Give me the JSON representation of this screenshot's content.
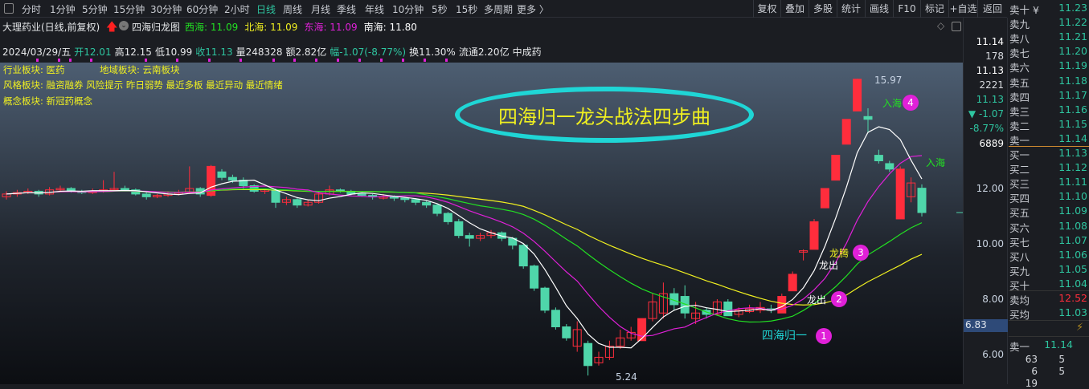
{
  "toolbar": {
    "tabs": [
      "分时",
      "1分钟",
      "5分钟",
      "15分钟",
      "30分钟",
      "60分钟",
      "2小时",
      "日线",
      "周线",
      "月线",
      "季线",
      "年线",
      "10分钟",
      "5秒",
      "15秒",
      "多周期",
      "更多 〉"
    ],
    "active": "日线",
    "buttons": [
      "复权",
      "叠加",
      "多股",
      "统计",
      "画线",
      "F10",
      "标记",
      "+自选",
      "返回"
    ]
  },
  "header": {
    "stock": "大理药业(日线,前复权)",
    "indicator": "四海归龙图",
    "legend": [
      {
        "label": "西海: 11.09",
        "color": "#22e022"
      },
      {
        "label": "北海: 11.09",
        "color": "#f0f020"
      },
      {
        "label": "东海: 11.09",
        "color": "#e020d8"
      },
      {
        "label": "南海: 11.80",
        "color": "#ffffff"
      }
    ],
    "quote": {
      "date": "2024/03/29/五",
      "open": "开12.01",
      "high": "高12.15",
      "low": "低10.99",
      "close": "收11.13",
      "volume": "量248328",
      "amount": "额2.82亿",
      "change": "幅-1.07(-8.77%)",
      "turnover": "换11.30%",
      "float": "流通2.20亿",
      "industry": "中成药"
    }
  },
  "sectors": {
    "industry": "行业板块: 医药",
    "region": "地域板块: 云南板块",
    "style": "风格板块: 融资融券 风险提示 昨日弱势 最近多板 最近异动 最近情绪",
    "concept": "概念板块: 新冠药概念"
  },
  "annotations": {
    "title": "四海归一龙头战法四步曲",
    "step1": "四海归一",
    "step2": "龙出",
    "step3a": "龙出",
    "step3b": "龙腾",
    "step4": "入海",
    "step5": "入海",
    "high": "15.97",
    "low": "5.24",
    "markers": [
      "1",
      "2",
      "3",
      "4"
    ]
  },
  "colors": {
    "up": "#ff2d3c",
    "down": "#4fd6aa",
    "ma5": "#ffffff",
    "ma10": "#e020d8",
    "ma20": "#22e022",
    "ma30": "#f0f020",
    "ellipse": "#1fd6d6"
  },
  "axis": {
    "top": [
      {
        "v": "11.14",
        "c": "#ffffff"
      },
      {
        "v": "178",
        "c": "#d8dbe0"
      },
      {
        "v": "11.13",
        "c": "#ffffff"
      },
      {
        "v": "2221",
        "c": "#d8dbe0"
      },
      {
        "v": "11.13",
        "c": "#2ec5a0"
      },
      {
        "v": "▼ -1.07",
        "c": "#2ec5a0"
      },
      {
        "v": "-8.77%",
        "c": "#2ec5a0"
      },
      {
        "v": "6889",
        "c": "#ffffff"
      }
    ],
    "ticks": [
      "12.00",
      "10.00",
      "8.00",
      "6.00"
    ],
    "cursor": "6.83"
  },
  "book": {
    "asks": [
      [
        "卖十 ¥",
        "11.23"
      ],
      [
        "卖九",
        "11.22"
      ],
      [
        "卖八",
        "11.21"
      ],
      [
        "卖七",
        "11.20"
      ],
      [
        "卖六",
        "11.19"
      ],
      [
        "卖五",
        "11.18"
      ],
      [
        "卖四",
        "11.17"
      ],
      [
        "卖三",
        "11.16"
      ],
      [
        "卖二",
        "11.15"
      ],
      [
        "卖一",
        "11.14"
      ]
    ],
    "bids": [
      [
        "买一",
        "11.13"
      ],
      [
        "买二",
        "11.12"
      ],
      [
        "买三",
        "11.11"
      ],
      [
        "买四",
        "11.10"
      ],
      [
        "买五",
        "11.09"
      ],
      [
        "买六",
        "11.08"
      ],
      [
        "买七",
        "11.07"
      ],
      [
        "买八",
        "11.06"
      ],
      [
        "买九",
        "11.05"
      ],
      [
        "买十",
        "11.04"
      ]
    ],
    "avg_ask": [
      "卖均",
      "12.52"
    ],
    "avg_bid": [
      "买均",
      "11.03"
    ],
    "last": [
      "卖一",
      "11.14"
    ],
    "ticks": [
      [
        "63",
        "5"
      ],
      [
        "6",
        "5"
      ],
      [
        "19",
        ""
      ]
    ]
  },
  "chart_data": {
    "type": "candlestick",
    "ylim": [
      5,
      16.4
    ],
    "ticks": [
      6,
      8,
      10,
      12
    ],
    "ohlc": [
      [
        11.7,
        11.9,
        11.6,
        11.8
      ],
      [
        11.8,
        11.95,
        11.7,
        11.85
      ],
      [
        11.85,
        12.0,
        11.8,
        11.9
      ],
      [
        11.9,
        11.95,
        11.7,
        11.8
      ],
      [
        11.8,
        12.05,
        11.75,
        11.95
      ],
      [
        11.95,
        12.1,
        11.9,
        12.0
      ],
      [
        12.0,
        12.05,
        11.85,
        11.9
      ],
      [
        11.9,
        11.95,
        11.8,
        11.85
      ],
      [
        11.85,
        12.0,
        11.8,
        11.9
      ],
      [
        11.9,
        12.3,
        11.85,
        11.95
      ],
      [
        11.95,
        12.6,
        11.9,
        12.0
      ],
      [
        12.0,
        12.1,
        11.9,
        11.95
      ],
      [
        11.95,
        12.0,
        11.75,
        11.8
      ],
      [
        11.8,
        11.85,
        11.6,
        11.7
      ],
      [
        11.7,
        11.8,
        11.65,
        11.75
      ],
      [
        11.75,
        11.9,
        11.7,
        11.8
      ],
      [
        11.8,
        11.95,
        11.75,
        11.85
      ],
      [
        11.85,
        12.8,
        11.8,
        12.0
      ],
      [
        12.0,
        12.05,
        11.7,
        11.8
      ],
      [
        11.75,
        12.85,
        11.7,
        12.8
      ],
      [
        12.6,
        12.7,
        12.3,
        12.4
      ],
      [
        12.4,
        12.5,
        12.2,
        12.3
      ],
      [
        12.3,
        12.4,
        12.0,
        12.1
      ],
      [
        12.1,
        12.15,
        11.85,
        11.9
      ],
      [
        11.9,
        12.0,
        11.8,
        11.95
      ],
      [
        11.95,
        12.0,
        11.3,
        11.5
      ],
      [
        11.5,
        11.7,
        11.4,
        11.6
      ],
      [
        11.6,
        11.65,
        11.3,
        11.4
      ],
      [
        11.4,
        11.6,
        11.35,
        11.5
      ],
      [
        11.5,
        11.9,
        11.45,
        11.8
      ],
      [
        11.8,
        12.1,
        11.75,
        11.95
      ],
      [
        11.95,
        12.0,
        11.85,
        11.9
      ],
      [
        11.9,
        11.95,
        11.75,
        11.8
      ],
      [
        11.8,
        11.85,
        11.7,
        11.75
      ],
      [
        11.75,
        11.8,
        11.6,
        11.7
      ],
      [
        11.65,
        11.8,
        11.6,
        11.7
      ],
      [
        11.7,
        11.75,
        11.55,
        11.65
      ],
      [
        11.65,
        11.7,
        11.5,
        11.6
      ],
      [
        11.6,
        11.65,
        11.4,
        11.5
      ],
      [
        11.5,
        11.55,
        11.3,
        11.4
      ],
      [
        11.4,
        11.45,
        11.0,
        11.1
      ],
      [
        11.1,
        11.15,
        10.7,
        10.8
      ],
      [
        10.8,
        10.9,
        10.2,
        10.3
      ],
      [
        10.3,
        10.4,
        9.9,
        10.2
      ],
      [
        10.2,
        10.4,
        10.1,
        10.3
      ],
      [
        10.3,
        10.5,
        10.2,
        10.4
      ],
      [
        10.4,
        10.45,
        10.1,
        10.2
      ],
      [
        10.2,
        10.25,
        9.8,
        9.95
      ],
      [
        9.95,
        10.0,
        9.1,
        9.2
      ],
      [
        9.2,
        9.25,
        8.3,
        8.4
      ],
      [
        8.4,
        8.45,
        7.5,
        7.6
      ],
      [
        7.6,
        7.7,
        6.9,
        7.0
      ],
      [
        7.0,
        7.1,
        6.5,
        6.6
      ],
      [
        6.3,
        7.2,
        6.1,
        6.9
      ],
      [
        6.4,
        6.5,
        5.24,
        5.6
      ],
      [
        5.7,
        6.1,
        5.6,
        5.9
      ],
      [
        5.9,
        6.5,
        5.8,
        6.3
      ],
      [
        6.3,
        6.9,
        6.2,
        6.6
      ],
      [
        6.6,
        7.0,
        6.5,
        6.8
      ],
      [
        6.5,
        7.3,
        6.5,
        7.3
      ],
      [
        7.3,
        8.2,
        7.2,
        7.9
      ],
      [
        7.5,
        8.6,
        7.3,
        8.2
      ],
      [
        8.2,
        8.4,
        7.6,
        7.8
      ],
      [
        8.1,
        8.5,
        7.3,
        7.5
      ],
      [
        7.3,
        7.9,
        7.1,
        7.5
      ],
      [
        7.6,
        7.7,
        7.3,
        7.45
      ],
      [
        7.45,
        8.0,
        7.4,
        7.9
      ],
      [
        7.9,
        8.0,
        7.4,
        7.4
      ],
      [
        7.45,
        7.7,
        7.35,
        7.6
      ],
      [
        7.55,
        7.8,
        7.5,
        7.65
      ],
      [
        7.6,
        7.9,
        7.5,
        7.7
      ],
      [
        7.65,
        7.8,
        7.5,
        7.6
      ],
      [
        7.5,
        8.2,
        7.5,
        8.1
      ],
      [
        8.3,
        9.0,
        8.3,
        8.9
      ],
      [
        9.7,
        9.8,
        9.4,
        9.75
      ],
      [
        9.8,
        10.9,
        9.8,
        10.8
      ],
      [
        11.3,
        12.0,
        11.3,
        12.0
      ],
      [
        12.3,
        13.2,
        12.3,
        13.2
      ],
      [
        13.6,
        14.5,
        13.6,
        14.5
      ],
      [
        14.8,
        15.97,
        14.8,
        15.95
      ],
      [
        14.6,
        14.9,
        14.0,
        14.5
      ],
      [
        13.2,
        13.4,
        12.9,
        13.0
      ],
      [
        12.9,
        13.0,
        12.6,
        12.7
      ],
      [
        10.9,
        12.8,
        10.9,
        12.7
      ],
      [
        11.7,
        12.4,
        11.5,
        12.2
      ],
      [
        12.01,
        12.15,
        10.99,
        11.13
      ]
    ]
  }
}
